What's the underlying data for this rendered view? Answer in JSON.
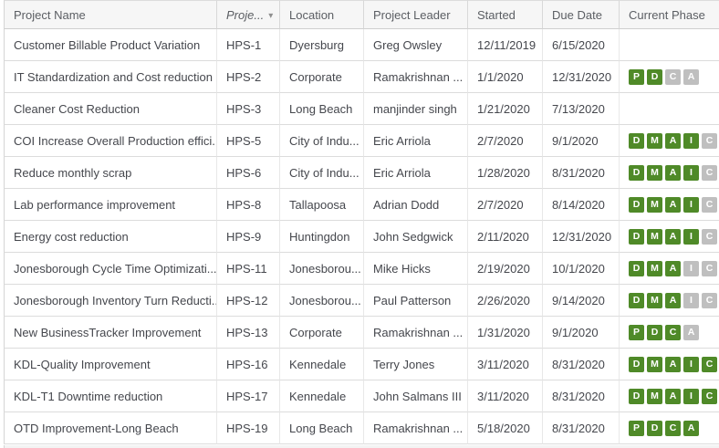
{
  "colors": {
    "phase_active": "#4f8a28",
    "phase_inactive": "#bfbfbf",
    "header_bg": "#f6f6f6"
  },
  "sort_indicator": {
    "icon": "caret-down-icon",
    "glyph": "▾"
  },
  "table": {
    "columns": [
      {
        "key": "name",
        "label": "Project Name",
        "sorted": false
      },
      {
        "key": "id",
        "label": "Proje...",
        "sorted": true
      },
      {
        "key": "location",
        "label": "Location",
        "sorted": false
      },
      {
        "key": "leader",
        "label": "Project Leader",
        "sorted": false
      },
      {
        "key": "started",
        "label": "Started",
        "sorted": false
      },
      {
        "key": "due",
        "label": "Due Date",
        "sorted": false
      },
      {
        "key": "phase",
        "label": "Current Phase",
        "sorted": false
      }
    ],
    "rows": [
      {
        "name": "Customer Billable Product Variation",
        "id": "HPS-1",
        "location": "Dyersburg",
        "leader": "Greg Owsley",
        "started": "12/11/2019",
        "due": "6/15/2020",
        "phases": []
      },
      {
        "name": "IT Standardization and Cost reduction",
        "id": "HPS-2",
        "location": "Corporate",
        "leader": "Ramakrishnan ...",
        "started": "1/1/2020",
        "due": "12/31/2020",
        "phases": [
          {
            "letter": "P",
            "active": true
          },
          {
            "letter": "D",
            "active": true
          },
          {
            "letter": "C",
            "active": false
          },
          {
            "letter": "A",
            "active": false
          }
        ]
      },
      {
        "name": "Cleaner Cost Reduction",
        "id": "HPS-3",
        "location": "Long Beach",
        "leader": "manjinder singh",
        "started": "1/21/2020",
        "due": "7/13/2020",
        "phases": []
      },
      {
        "name": "COI Increase Overall Production effici...",
        "id": "HPS-5",
        "location": "City of Indu...",
        "leader": "Eric Arriola",
        "started": "2/7/2020",
        "due": "9/1/2020",
        "phases": [
          {
            "letter": "D",
            "active": true
          },
          {
            "letter": "M",
            "active": true
          },
          {
            "letter": "A",
            "active": true
          },
          {
            "letter": "I",
            "active": true
          },
          {
            "letter": "C",
            "active": false
          }
        ]
      },
      {
        "name": "Reduce monthly scrap",
        "id": "HPS-6",
        "location": "City of Indu...",
        "leader": "Eric Arriola",
        "started": "1/28/2020",
        "due": "8/31/2020",
        "phases": [
          {
            "letter": "D",
            "active": true
          },
          {
            "letter": "M",
            "active": true
          },
          {
            "letter": "A",
            "active": true
          },
          {
            "letter": "I",
            "active": true
          },
          {
            "letter": "C",
            "active": false
          }
        ]
      },
      {
        "name": "Lab performance improvement",
        "id": "HPS-8",
        "location": "Tallapoosa",
        "leader": "Adrian Dodd",
        "started": "2/7/2020",
        "due": "8/14/2020",
        "phases": [
          {
            "letter": "D",
            "active": true
          },
          {
            "letter": "M",
            "active": true
          },
          {
            "letter": "A",
            "active": true
          },
          {
            "letter": "I",
            "active": true
          },
          {
            "letter": "C",
            "active": false
          }
        ]
      },
      {
        "name": "Energy cost reduction",
        "id": "HPS-9",
        "location": "Huntingdon",
        "leader": "John Sedgwick",
        "started": "2/11/2020",
        "due": "12/31/2020",
        "phases": [
          {
            "letter": "D",
            "active": true
          },
          {
            "letter": "M",
            "active": true
          },
          {
            "letter": "A",
            "active": true
          },
          {
            "letter": "I",
            "active": true
          },
          {
            "letter": "C",
            "active": false
          }
        ]
      },
      {
        "name": "Jonesborough Cycle Time Optimizati...",
        "id": "HPS-11",
        "location": "Jonesborou...",
        "leader": "Mike Hicks",
        "started": "2/19/2020",
        "due": "10/1/2020",
        "phases": [
          {
            "letter": "D",
            "active": true
          },
          {
            "letter": "M",
            "active": true
          },
          {
            "letter": "A",
            "active": true
          },
          {
            "letter": "I",
            "active": false
          },
          {
            "letter": "C",
            "active": false
          }
        ]
      },
      {
        "name": "Jonesborough Inventory Turn Reducti...",
        "id": "HPS-12",
        "location": "Jonesborou...",
        "leader": "Paul Patterson",
        "started": "2/26/2020",
        "due": "9/14/2020",
        "phases": [
          {
            "letter": "D",
            "active": true
          },
          {
            "letter": "M",
            "active": true
          },
          {
            "letter": "A",
            "active": true
          },
          {
            "letter": "I",
            "active": false
          },
          {
            "letter": "C",
            "active": false
          }
        ]
      },
      {
        "name": "New BusinessTracker Improvement",
        "id": "HPS-13",
        "location": "Corporate",
        "leader": "Ramakrishnan ...",
        "started": "1/31/2020",
        "due": "9/1/2020",
        "phases": [
          {
            "letter": "P",
            "active": true
          },
          {
            "letter": "D",
            "active": true
          },
          {
            "letter": "C",
            "active": true
          },
          {
            "letter": "A",
            "active": false
          }
        ]
      },
      {
        "name": "KDL-Quality Improvement",
        "id": "HPS-16",
        "location": "Kennedale",
        "leader": "Terry Jones",
        "started": "3/11/2020",
        "due": "8/31/2020",
        "phases": [
          {
            "letter": "D",
            "active": true
          },
          {
            "letter": "M",
            "active": true
          },
          {
            "letter": "A",
            "active": true
          },
          {
            "letter": "I",
            "active": true
          },
          {
            "letter": "C",
            "active": true
          }
        ]
      },
      {
        "name": "KDL-T1 Downtime reduction",
        "id": "HPS-17",
        "location": "Kennedale",
        "leader": "John Salmans III",
        "started": "3/11/2020",
        "due": "8/31/2020",
        "phases": [
          {
            "letter": "D",
            "active": true
          },
          {
            "letter": "M",
            "active": true
          },
          {
            "letter": "A",
            "active": true
          },
          {
            "letter": "I",
            "active": true
          },
          {
            "letter": "C",
            "active": true
          }
        ]
      },
      {
        "name": "OTD Improvement-Long Beach",
        "id": "HPS-19",
        "location": "Long Beach",
        "leader": "Ramakrishnan ...",
        "started": "5/18/2020",
        "due": "8/31/2020",
        "phases": [
          {
            "letter": "P",
            "active": true
          },
          {
            "letter": "D",
            "active": true
          },
          {
            "letter": "C",
            "active": true
          },
          {
            "letter": "A",
            "active": true
          }
        ]
      }
    ]
  }
}
